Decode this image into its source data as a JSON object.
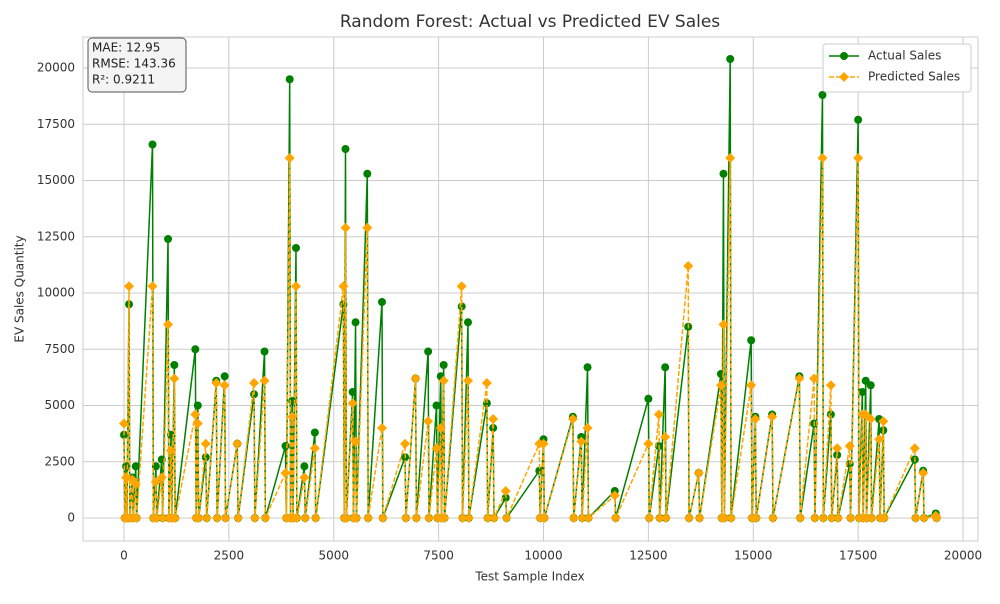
{
  "chart_data": {
    "type": "line",
    "title": "Random Forest: Actual vs Predicted EV Sales",
    "xlabel": "Test Sample Index",
    "ylabel": "EV Sales Quantity",
    "annotations": [
      "MAE: 12.95",
      "RMSE: 143.36",
      "R²: 0.9211"
    ],
    "x": [
      0,
      20,
      50,
      70,
      120,
      140,
      200,
      220,
      280,
      300,
      680,
      700,
      760,
      780,
      900,
      920,
      1050,
      1070,
      1120,
      1140,
      1200,
      1220,
      1700,
      1720,
      1760,
      1780,
      1950,
      1970,
      2200,
      2220,
      2400,
      2420,
      2700,
      2720,
      3100,
      3120,
      3350,
      3370,
      3850,
      3870,
      3950,
      3970,
      4010,
      4030,
      4100,
      4120,
      4300,
      4320,
      4550,
      4570,
      5230,
      5250,
      5280,
      5300,
      5450,
      5470,
      5520,
      5540,
      5800,
      5820,
      6150,
      6170,
      6700,
      6720,
      6950,
      6970,
      7250,
      7270,
      7450,
      7470,
      7550,
      7570,
      7620,
      7640,
      8050,
      8070,
      8200,
      8220,
      8650,
      8670,
      8800,
      8820,
      9100,
      9120,
      9900,
      9920,
      10000,
      10020,
      10700,
      10720,
      10900,
      10920,
      11050,
      11070,
      11700,
      11720,
      12500,
      12520,
      12750,
      12770,
      12900,
      12920,
      13450,
      13470,
      13700,
      13720,
      14230,
      14250,
      14290,
      14310,
      14450,
      14470,
      14950,
      14970,
      15050,
      15070,
      15450,
      15470,
      16100,
      16120,
      16450,
      16470,
      16650,
      16670,
      16850,
      16870,
      17000,
      17020,
      17300,
      17320,
      17500,
      17520,
      17600,
      17620,
      17680,
      17700,
      17800,
      17820,
      18000,
      18020,
      18100,
      18120,
      18850,
      18870,
      19050,
      19070,
      19350,
      19370
    ],
    "series": [
      {
        "name": "Actual Sales",
        "color": "#008000",
        "marker": "circle",
        "dashed": false,
        "values": [
          3700,
          0,
          2300,
          0,
          9500,
          0,
          1800,
          0,
          2300,
          0,
          16600,
          0,
          2300,
          0,
          2600,
          0,
          12400,
          0,
          3700,
          0,
          6800,
          0,
          7500,
          0,
          5000,
          0,
          2700,
          0,
          6100,
          0,
          6300,
          0,
          3300,
          0,
          5500,
          0,
          7400,
          0,
          3200,
          0,
          19500,
          0,
          5200,
          0,
          12000,
          0,
          2300,
          0,
          3800,
          0,
          9500,
          0,
          16400,
          0,
          5600,
          0,
          8700,
          0,
          15300,
          0,
          9600,
          0,
          2700,
          0,
          6200,
          0,
          7400,
          0,
          5000,
          0,
          6300,
          0,
          6800,
          0,
          9400,
          0,
          8700,
          0,
          5100,
          0,
          4000,
          0,
          900,
          0,
          2100,
          0,
          3500,
          0,
          4500,
          0,
          3600,
          0,
          6700,
          0,
          1200,
          0,
          5300,
          0,
          3200,
          0,
          6700,
          0,
          8500,
          0,
          2000,
          0,
          6400,
          0,
          15300,
          0,
          20400,
          0,
          7900,
          0,
          4500,
          0,
          4600,
          0,
          6300,
          0,
          4200,
          0,
          18800,
          0,
          4600,
          0,
          2800,
          0,
          2400,
          0,
          17700,
          0,
          5600,
          0,
          6100,
          0,
          5900,
          0,
          4400,
          0,
          3900,
          0,
          2600,
          0,
          2100,
          0,
          200,
          0
        ]
      },
      {
        "name": "Predicted Sales",
        "color": "#ffa500",
        "marker": "diamond",
        "dashed": true,
        "values": [
          4200,
          0,
          1800,
          0,
          10300,
          0,
          1700,
          0,
          1500,
          0,
          10300,
          0,
          1600,
          0,
          1800,
          0,
          8600,
          0,
          3000,
          0,
          6200,
          0,
          4600,
          0,
          4200,
          0,
          3300,
          0,
          6000,
          0,
          5900,
          0,
          3300,
          0,
          6000,
          0,
          6100,
          0,
          2000,
          0,
          16000,
          0,
          4500,
          0,
          10300,
          0,
          1800,
          0,
          3100,
          0,
          10300,
          0,
          12900,
          0,
          5100,
          0,
          3400,
          0,
          12900,
          0,
          4000,
          0,
          3300,
          0,
          6200,
          0,
          4300,
          0,
          3100,
          0,
          4000,
          0,
          6100,
          0,
          10300,
          0,
          6100,
          0,
          6000,
          0,
          4400,
          0,
          1200,
          0,
          3300,
          0,
          3300,
          0,
          4400,
          0,
          3400,
          0,
          4000,
          0,
          1000,
          0,
          3300,
          0,
          4600,
          0,
          3600,
          0,
          11200,
          0,
          2000,
          0,
          5900,
          0,
          8600,
          0,
          16000,
          0,
          5900,
          0,
          4400,
          0,
          4500,
          0,
          6200,
          0,
          6200,
          0,
          16000,
          0,
          5900,
          0,
          3100,
          0,
          3200,
          0,
          16000,
          0,
          4600,
          0,
          4600,
          0,
          4400,
          0,
          3500,
          0,
          4300,
          0,
          3100,
          0,
          2000,
          0,
          100,
          0
        ]
      }
    ],
    "xlim": [
      -977,
      20357
    ],
    "ylim": [
      -1022,
      21378
    ],
    "xticks": [
      0,
      2500,
      5000,
      7500,
      10000,
      12500,
      15000,
      17500,
      20000
    ],
    "yticks": [
      0,
      2500,
      5000,
      7500,
      10000,
      12500,
      15000,
      17500,
      20000
    ],
    "grid": true,
    "legend": "upper right"
  }
}
